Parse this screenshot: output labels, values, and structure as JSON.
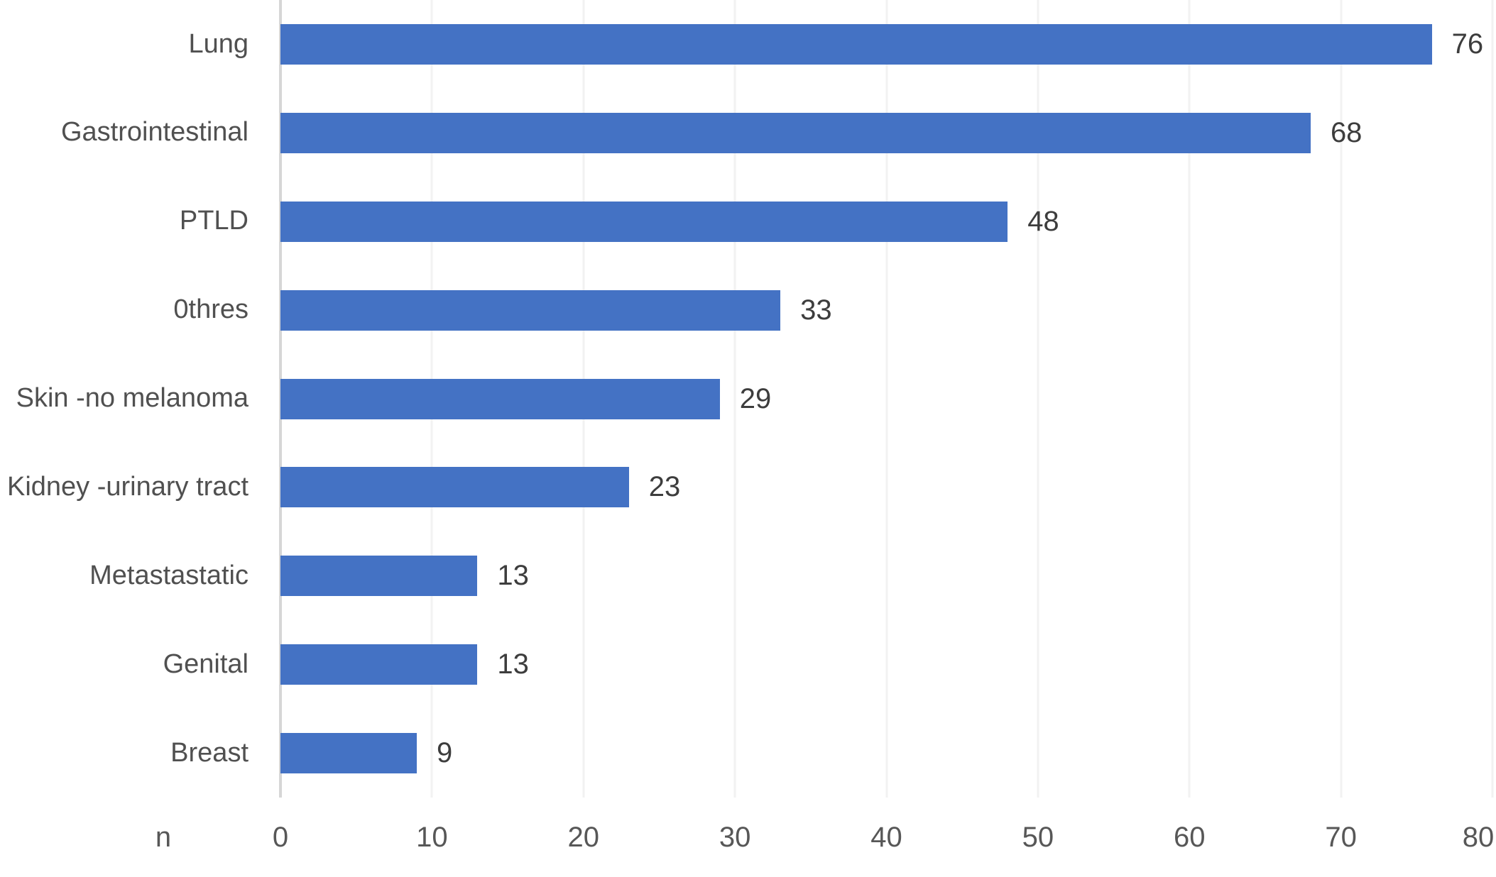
{
  "chart_data": {
    "type": "bar",
    "orientation": "horizontal",
    "title": "",
    "categories": [
      "Lung",
      "Gastrointestinal",
      "PTLD",
      "0thres",
      "Skin -no melanoma",
      "Kidney -urinary tract",
      "Metastastatic",
      "Genital",
      "Breast"
    ],
    "values": [
      76,
      68,
      48,
      33,
      29,
      23,
      13,
      13,
      9
    ],
    "value_labels": [
      "76",
      "68",
      "48",
      "33",
      "29",
      "23",
      "13",
      "13",
      "9"
    ],
    "xlabel": "n",
    "ylabel": "",
    "xlim": [
      0,
      80
    ],
    "xticks": [
      0,
      10,
      20,
      30,
      40,
      50,
      60,
      70,
      80
    ],
    "grid": "vertical-light",
    "legend_position": "none"
  },
  "colors": {
    "bar": "#4472C4",
    "category_text": "#505050",
    "value_text": "#3d3d3d",
    "tick_text": "#575757",
    "axis_line": "#d6d6d6",
    "gridline": "#f2f2f2",
    "background": "#ffffff"
  }
}
